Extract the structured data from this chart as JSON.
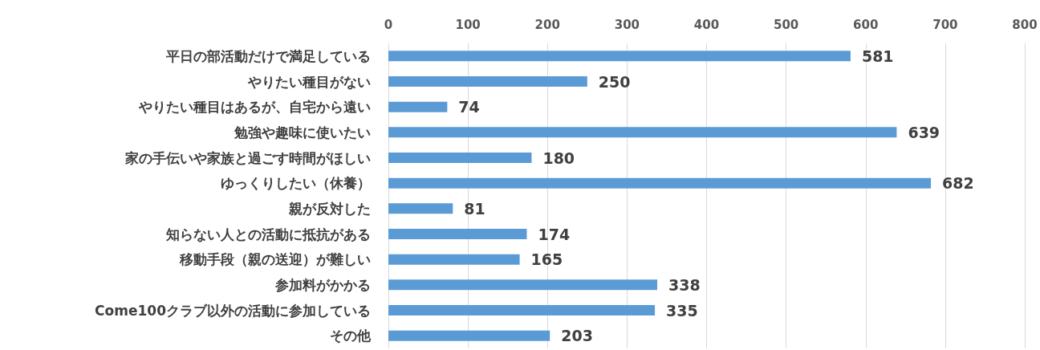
{
  "chart_data": {
    "type": "bar",
    "orientation": "horizontal",
    "categories": [
      "平日の部活動だけで満足している",
      "やりたい種目がない",
      "やりたい種目はあるが、自宅から遠い",
      "勉強や趣味に使いたい",
      "家の手伝いや家族と過ごす時間がほしい",
      "ゆっくりしたい（休養）",
      "親が反対した",
      "知らない人との活動に抵抗がある",
      "移動手段（親の送迎）が難しい",
      "参加料がかかる",
      "Come100クラブ以外の活動に参加している",
      "その他"
    ],
    "values": [
      581,
      250,
      74,
      639,
      180,
      682,
      81,
      174,
      165,
      338,
      335,
      203
    ],
    "color": "#5b9bd5",
    "xlim": [
      0,
      800
    ],
    "xticks": [
      0,
      100,
      200,
      300,
      400,
      500,
      600,
      700,
      800
    ],
    "grid": "x",
    "data_labels": true
  }
}
